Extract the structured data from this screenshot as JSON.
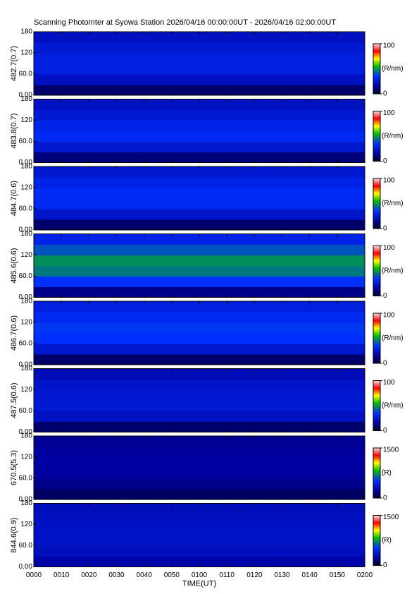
{
  "title": "Scanning Photomter at Syowa Station 2026/04/16 00:00:00UT - 2026/04/16 02:00:00UT",
  "chart_data": [
    {
      "type": "heatmap",
      "ylabel": "482.7(0.7)",
      "ylim": [
        0,
        180
      ],
      "yticks": [
        {
          "value": 0,
          "label": "0.00"
        },
        {
          "value": 60,
          "label": "60.0"
        },
        120,
        180
      ],
      "xlim": [
        0,
        120
      ],
      "ybins": [
        0,
        30,
        60,
        90,
        120,
        150,
        180
      ],
      "values": [
        8,
        22,
        28,
        28,
        26,
        22
      ],
      "clim": [
        0,
        100
      ],
      "cticks": [
        0,
        100
      ],
      "clabel": "(R/nm)"
    },
    {
      "type": "heatmap",
      "ylabel": "483.8(0.7)",
      "ylim": [
        0,
        180
      ],
      "yticks": [
        {
          "value": 0,
          "label": "0.00"
        },
        {
          "value": 60,
          "label": "60.0"
        },
        120,
        180
      ],
      "xlim": [
        0,
        120
      ],
      "ybins": [
        0,
        30,
        60,
        90,
        120,
        150,
        180
      ],
      "values": [
        10,
        25,
        32,
        30,
        26,
        22
      ],
      "clim": [
        0,
        100
      ],
      "cticks": [
        0,
        100
      ],
      "clabel": "(R/nm)"
    },
    {
      "type": "heatmap",
      "ylabel": "484.7(0.6)",
      "ylim": [
        0,
        180
      ],
      "yticks": [
        {
          "value": 0,
          "label": "0.00"
        },
        {
          "value": 60,
          "label": "60.0"
        },
        120,
        180
      ],
      "xlim": [
        0,
        120
      ],
      "ybins": [
        0,
        30,
        60,
        90,
        120,
        150,
        180
      ],
      "values": [
        8,
        24,
        32,
        33,
        30,
        25
      ],
      "clim": [
        0,
        100
      ],
      "cticks": [
        0,
        100
      ],
      "clabel": "(R/nm)"
    },
    {
      "type": "heatmap",
      "ylabel": "485.6(0.6)",
      "ylim": [
        0,
        180
      ],
      "yticks": [
        {
          "value": 0,
          "label": "0.00"
        },
        {
          "value": 60,
          "label": "60.0"
        },
        120,
        180
      ],
      "xlim": [
        0,
        120
      ],
      "ybins": [
        0,
        30,
        60,
        90,
        120,
        150,
        180
      ],
      "values": [
        12,
        35,
        45,
        48,
        40,
        30
      ],
      "clim": [
        0,
        100
      ],
      "cticks": [
        0,
        100
      ],
      "clabel": "(R/nm)"
    },
    {
      "type": "heatmap",
      "ylabel": "486.7(0.6)",
      "ylim": [
        0,
        180
      ],
      "yticks": [
        {
          "value": 0,
          "label": "0.00"
        },
        {
          "value": 60,
          "label": "60.0"
        },
        120,
        180
      ],
      "xlim": [
        0,
        120
      ],
      "ybins": [
        0,
        30,
        60,
        90,
        120,
        150,
        180
      ],
      "values": [
        8,
        25,
        35,
        36,
        32,
        28
      ],
      "clim": [
        0,
        100
      ],
      "cticks": [
        0,
        100
      ],
      "clabel": "(R/nm)"
    },
    {
      "type": "heatmap",
      "ylabel": "487.5(0.6)",
      "ylim": [
        0,
        180
      ],
      "yticks": [
        {
          "value": 0,
          "label": "0.00"
        },
        {
          "value": 60,
          "label": "60.0"
        },
        120,
        180
      ],
      "xlim": [
        0,
        120
      ],
      "ybins": [
        0,
        30,
        60,
        90,
        120,
        150,
        180
      ],
      "values": [
        8,
        22,
        26,
        25,
        23,
        20
      ],
      "clim": [
        0,
        100
      ],
      "cticks": [
        0,
        100
      ],
      "clabel": "(R/nm)"
    },
    {
      "type": "heatmap",
      "ylabel": "670.5(5.3)",
      "ylim": [
        0,
        180
      ],
      "yticks": [
        {
          "value": 0,
          "label": "0.00"
        },
        {
          "value": 60,
          "label": "60.0"
        },
        120,
        180
      ],
      "xlim": [
        0,
        120
      ],
      "ybins": [
        0,
        30,
        60,
        90,
        120,
        150,
        180
      ],
      "values": [
        100,
        180,
        220,
        230,
        220,
        200
      ],
      "clim": [
        0,
        1500
      ],
      "cticks": [
        0,
        1500
      ],
      "clabel": "(R)"
    },
    {
      "type": "heatmap",
      "ylabel": "844.6(0.9)",
      "ylim": [
        0,
        180
      ],
      "yticks": [
        {
          "value": 0,
          "label": "0.00"
        },
        {
          "value": 60,
          "label": "60.0"
        },
        120,
        180
      ],
      "xlim": [
        0,
        120
      ],
      "ybins": [
        0,
        30,
        60,
        90,
        120,
        150,
        180
      ],
      "values": [
        250,
        320,
        340,
        340,
        330,
        310
      ],
      "clim": [
        0,
        1500
      ],
      "cticks": [
        0,
        1500
      ],
      "clabel": "(R)",
      "xlabel": "TIME(UT)",
      "xticks": [
        {
          "value": 0,
          "label": "0000"
        },
        {
          "value": 10,
          "label": "0010"
        },
        {
          "value": 20,
          "label": "0020"
        },
        {
          "value": 30,
          "label": "0030"
        },
        {
          "value": 40,
          "label": "0040"
        },
        {
          "value": 50,
          "label": "0050"
        },
        {
          "value": 60,
          "label": "0100"
        },
        {
          "value": 70,
          "label": "0110"
        },
        {
          "value": 80,
          "label": "0120"
        },
        {
          "value": 90,
          "label": "0130"
        },
        {
          "value": 100,
          "label": "0140"
        },
        {
          "value": 110,
          "label": "0150"
        },
        {
          "value": 120,
          "label": "0200"
        }
      ]
    }
  ]
}
